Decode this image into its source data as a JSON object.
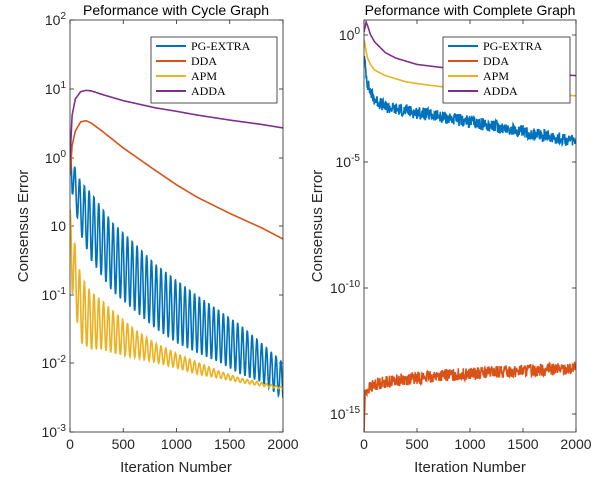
{
  "chart_data": [
    {
      "type": "line",
      "title": "Peformance with Cycle Graph",
      "xlabel": "Iteration Number",
      "ylabel": "Consensus Error",
      "yscale": "log",
      "xlim": [
        0,
        2000
      ],
      "ylim": [
        0.001,
        100
      ],
      "xticks": [
        "0",
        "500",
        "1000",
        "1500",
        "2000"
      ],
      "yticks": [
        {
          "base": "10",
          "exp": "-3"
        },
        {
          "base": "10",
          "exp": "-2"
        },
        {
          "base": "10",
          "exp": "-1"
        },
        {
          "text": "10"
        },
        {
          "base": "10",
          "exp": "0"
        },
        {
          "base": "10",
          "exp": "1"
        },
        {
          "base": "10",
          "exp": "2"
        }
      ],
      "legend_position": "top-right",
      "series": [
        {
          "name": "PG-EXTRA",
          "color": "#0072BD",
          "oscillating": true,
          "x": [
            0,
            20,
            100,
            200,
            400,
            600,
            800,
            1000,
            1200,
            1400,
            1600,
            1800,
            2000
          ],
          "y": [
            3,
            2,
            1.1,
            0.8,
            0.35,
            0.2,
            0.11,
            0.07,
            0.045,
            0.03,
            0.02,
            0.012,
            0.007
          ],
          "low": [
            3,
            0.8,
            0.25,
            0.12,
            0.05,
            0.03,
            0.018,
            0.012,
            0.009,
            0.007,
            0.005,
            0.004,
            0.0025
          ]
        },
        {
          "name": "DDA",
          "color": "#D95319",
          "x": [
            0,
            20,
            50,
            100,
            150,
            200,
            300,
            500,
            800,
            1000,
            1200,
            1500,
            1800,
            2000
          ],
          "y": [
            1.3,
            3,
            4.5,
            5.8,
            6.0,
            5.6,
            4.5,
            2.8,
            1.5,
            1.0,
            0.7,
            0.45,
            0.3,
            0.22
          ]
        },
        {
          "name": "APM",
          "color": "#EDB120",
          "oscillating": true,
          "x": [
            0,
            20,
            100,
            200,
            300,
            400,
            600,
            800,
            1000,
            1200,
            1400,
            1600,
            1800,
            2000
          ],
          "y": [
            0.5,
            0.3,
            0.08,
            0.05,
            0.04,
            0.03,
            0.018,
            0.012,
            0.009,
            0.007,
            0.0055,
            0.0045,
            0.004,
            0.0035
          ],
          "low": [
            0.5,
            0.05,
            0.012,
            0.01,
            0.01,
            0.009,
            0.008,
            0.007,
            0.006,
            0.005,
            0.0045,
            0.004,
            0.0036,
            0.0033
          ]
        },
        {
          "name": "ADDA",
          "color": "#7E2F8E",
          "x": [
            0,
            20,
            50,
            100,
            150,
            200,
            300,
            500,
            800,
            1000,
            1200,
            1500,
            1800,
            2000
          ],
          "y": [
            2,
            7,
            11,
            13.5,
            14,
            13.8,
            12.5,
            10.5,
            8.6,
            7.8,
            7.0,
            6.1,
            5.4,
            4.9
          ]
        }
      ]
    },
    {
      "type": "line",
      "title": "Peformance with Complete Graph",
      "xlabel": "Iteration Number",
      "ylabel": "Consensus Error",
      "yscale": "log",
      "xlim": [
        0,
        2000
      ],
      "ylim": [
        1e-16,
        3
      ],
      "xticks": [
        "0",
        "500",
        "1000",
        "1500",
        "2000"
      ],
      "yticks": [
        {
          "base": "10",
          "exp": "0"
        },
        {
          "base": "10",
          "exp": "-5"
        },
        {
          "base": "10",
          "exp": "-10"
        },
        {
          "base": "10",
          "exp": "-15"
        }
      ],
      "legend_position": "top-right",
      "series": [
        {
          "name": "PG-EXTRA",
          "color": "#0072BD",
          "noisy": true,
          "x": [
            0,
            10,
            30,
            60,
            100,
            200,
            400,
            600,
            800,
            1000,
            1200,
            1400,
            1600,
            1800,
            2000
          ],
          "y": [
            0.1,
            0.05,
            0.01,
            0.004,
            0.002,
            0.001,
            0.0007,
            0.0005,
            0.00035,
            0.00025,
            0.00018,
            0.00012,
            8e-05,
            6e-05,
            4e-05
          ]
        },
        {
          "name": "DDA",
          "color": "#D95319",
          "noisy": true,
          "x": [
            0,
            10,
            30,
            100,
            200,
            400,
            600,
            800,
            1000,
            1200,
            1400,
            1600,
            1800,
            2000
          ],
          "y": [
            1e-16,
            3e-15,
            5e-15,
            8e-15,
            1e-14,
            1.3e-14,
            1.6e-14,
            1.9e-14,
            2.1e-14,
            2.4e-14,
            2.7e-14,
            3e-14,
            3.2e-14,
            3.4e-14
          ]
        },
        {
          "name": "APM",
          "color": "#EDB120",
          "x": [
            0,
            10,
            30,
            60,
            100,
            200,
            400,
            600,
            800,
            1000,
            1200,
            1400,
            1600,
            1800,
            2000
          ],
          "y": [
            0.5,
            0.3,
            0.1,
            0.05,
            0.03,
            0.018,
            0.01,
            0.0075,
            0.006,
            0.005,
            0.0042,
            0.0036,
            0.0032,
            0.003,
            0.0028
          ]
        },
        {
          "name": "ADDA",
          "color": "#7E2F8E",
          "x": [
            0,
            20,
            40,
            60,
            100,
            200,
            300,
            500,
            800,
            1000,
            1200,
            1500,
            1800,
            2000
          ],
          "y": [
            1.0,
            2.5,
            1.5,
            0.8,
            0.4,
            0.15,
            0.09,
            0.05,
            0.035,
            0.03,
            0.026,
            0.023,
            0.02,
            0.018
          ]
        }
      ]
    }
  ]
}
